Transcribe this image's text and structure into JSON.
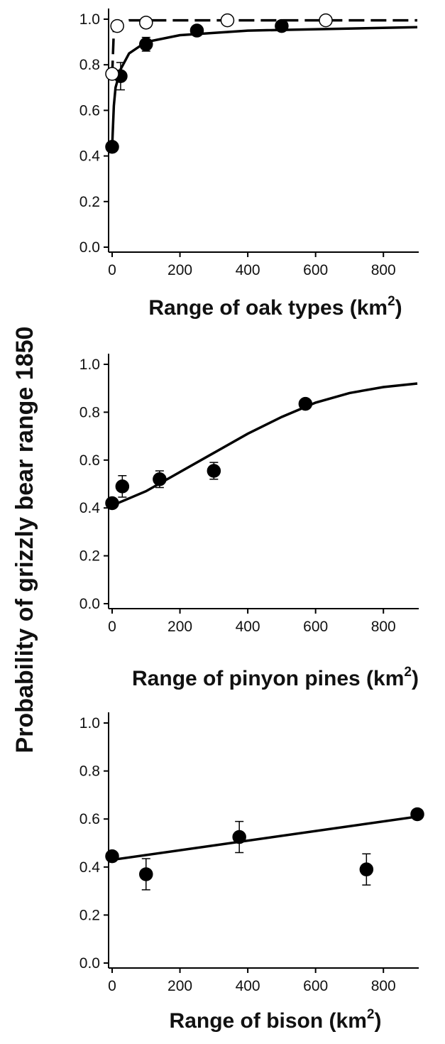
{
  "chart_data": [
    {
      "type": "scatter",
      "ylabel": "Probability of grizzly bear range 1850",
      "xlabel": [
        "Range of oak types (km",
        "2",
        ")"
      ],
      "xlim": [
        0,
        900
      ],
      "ylim": [
        0,
        1
      ],
      "xticks": [
        0,
        200,
        400,
        600,
        800
      ],
      "yticks": [
        {
          "value": 0,
          "label": "0.0"
        },
        {
          "value": 0.2,
          "label": "0.2"
        },
        {
          "value": 0.4,
          "label": "0.4"
        },
        {
          "value": 0.6,
          "label": "0.6"
        },
        {
          "value": 0.8,
          "label": "0.8"
        },
        {
          "value": 1,
          "label": "1.0"
        }
      ],
      "series": [
        {
          "fill": "#000000",
          "x": [
            0,
            25,
            100,
            250,
            500
          ],
          "values": [
            0.44,
            0.75,
            0.89,
            0.95,
            0.97
          ],
          "errors": [
            null,
            0.06,
            0.03,
            null,
            null
          ],
          "curve": {
            "dash": false,
            "x": [
              0,
              5,
              10,
              25,
              50,
              100,
              200,
              400,
              900
            ],
            "values": [
              0.44,
              0.62,
              0.7,
              0.78,
              0.85,
              0.9,
              0.93,
              0.95,
              0.965
            ]
          }
        },
        {
          "fill": "#ffffff",
          "x": [
            0,
            15,
            100,
            340,
            630
          ],
          "values": [
            0.76,
            0.97,
            0.985,
            0.995,
            0.995
          ],
          "errors": [
            null,
            null,
            null,
            null,
            null
          ],
          "curve": {
            "dash": true,
            "x": [
              0,
              5,
              15,
              50,
              900
            ],
            "values": [
              0.75,
              0.95,
              0.985,
              0.995,
              0.995
            ]
          }
        }
      ]
    },
    {
      "type": "scatter",
      "xlabel": [
        "Range of pinyon pines (km",
        "2",
        ")"
      ],
      "xlim": [
        0,
        900
      ],
      "ylim": [
        0,
        1
      ],
      "xticks": [
        0,
        200,
        400,
        600,
        800
      ],
      "yticks": [
        {
          "value": 0,
          "label": "0.0"
        },
        {
          "value": 0.2,
          "label": "0.2"
        },
        {
          "value": 0.4,
          "label": "0.4"
        },
        {
          "value": 0.6,
          "label": "0.6"
        },
        {
          "value": 0.8,
          "label": "0.8"
        },
        {
          "value": 1,
          "label": "1.0"
        }
      ],
      "series": [
        {
          "fill": "#000000",
          "x": [
            0,
            30,
            140,
            300,
            570
          ],
          "values": [
            0.42,
            0.49,
            0.52,
            0.555,
            0.835
          ],
          "errors": [
            null,
            0.045,
            0.035,
            0.035,
            null
          ],
          "curve": {
            "dash": false,
            "x": [
              0,
              100,
              200,
              300,
              400,
              500,
              600,
              700,
              800,
              900
            ],
            "values": [
              0.41,
              0.47,
              0.55,
              0.63,
              0.71,
              0.78,
              0.84,
              0.88,
              0.905,
              0.92
            ]
          }
        }
      ]
    },
    {
      "type": "scatter",
      "xlabel": [
        "Range of bison (km",
        "2",
        ")"
      ],
      "xlim": [
        0,
        900
      ],
      "ylim": [
        0,
        1
      ],
      "xticks": [
        0,
        200,
        400,
        600,
        800
      ],
      "yticks": [
        {
          "value": 0,
          "label": "0.0"
        },
        {
          "value": 0.2,
          "label": "0.2"
        },
        {
          "value": 0.4,
          "label": "0.4"
        },
        {
          "value": 0.6,
          "label": "0.6"
        },
        {
          "value": 0.8,
          "label": "0.8"
        },
        {
          "value": 1,
          "label": "1.0"
        }
      ],
      "series": [
        {
          "fill": "#000000",
          "x": [
            0,
            100,
            375,
            750,
            900
          ],
          "values": [
            0.445,
            0.37,
            0.525,
            0.39,
            0.62
          ],
          "errors": [
            null,
            0.065,
            0.065,
            0.065,
            null
          ],
          "curve": {
            "dash": false,
            "x": [
              0,
              900
            ],
            "values": [
              0.43,
              0.61
            ]
          }
        }
      ]
    }
  ]
}
